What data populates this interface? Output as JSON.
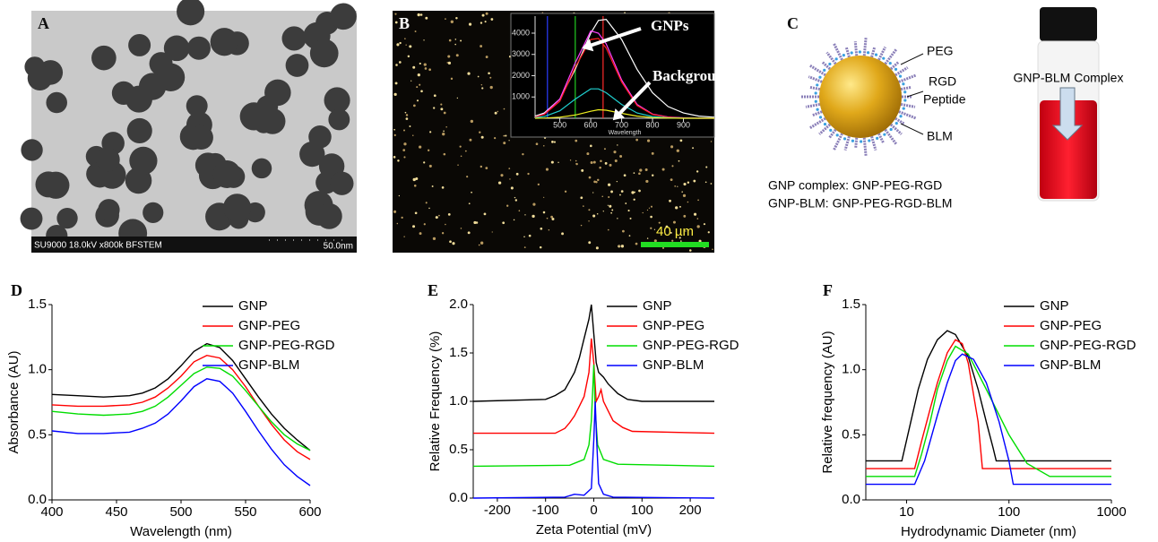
{
  "panels": {
    "A": {
      "label": "A",
      "caption": "SU9000 18.0kV x800k BFSTEM",
      "scale": "50.0nm"
    },
    "B": {
      "label": "B",
      "scale": "40 µm"
    },
    "C": {
      "label": "C",
      "parts": [
        "PEG",
        "RGD",
        "Peptide",
        "BLM"
      ],
      "captions": [
        "GNP complex: GNP-PEG-RGD",
        "GNP-BLM: GNP-PEG-RGD-BLM"
      ],
      "vial": "GNP-BLM Complex"
    },
    "D": {
      "label": "D"
    },
    "E": {
      "label": "E"
    },
    "F": {
      "label": "F"
    }
  },
  "chart_data": [
    {
      "type": "line",
      "x_label": "Wavelength",
      "xlim": [
        420,
        1000
      ],
      "ylim": [
        0,
        4800
      ],
      "xticks": [
        500,
        600,
        700,
        800,
        900
      ],
      "yticks": [
        1000,
        2000,
        3000,
        4000
      ],
      "annotations": [
        "GNPs",
        "Background"
      ],
      "markers": [
        {
          "value": 460,
          "color": "#2a3cff"
        },
        {
          "value": 550,
          "color": "#22cc22"
        },
        {
          "value": 640,
          "color": "#ff2a2a"
        }
      ],
      "x": [
        420,
        450,
        500,
        550,
        600,
        625,
        650,
        700,
        750,
        800,
        850,
        900,
        950,
        1000
      ],
      "series": [
        {
          "color": "#ffffff",
          "values": [
            100,
            250,
            900,
            2300,
            4000,
            4600,
            4650,
            3700,
            2300,
            1200,
            550,
            250,
            100,
            50
          ]
        },
        {
          "color": "#ff40ff",
          "values": [
            50,
            200,
            900,
            2600,
            4100,
            4000,
            3500,
            1800,
            650,
            200,
            60,
            20,
            0,
            0
          ]
        },
        {
          "color": "#ff2020",
          "values": [
            50,
            180,
            800,
            2400,
            3700,
            3750,
            3300,
            1700,
            600,
            180,
            50,
            10,
            0,
            0
          ]
        },
        {
          "color": "#20d0d0",
          "values": [
            20,
            80,
            350,
            900,
            1380,
            1380,
            1200,
            650,
            250,
            80,
            20,
            0,
            0,
            0
          ]
        },
        {
          "color": "#f0f020",
          "values": [
            0,
            10,
            50,
            150,
            330,
            400,
            380,
            230,
            100,
            30,
            10,
            0,
            0,
            0
          ]
        }
      ]
    },
    {
      "type": "line",
      "x_label": "Wavelength (nm)",
      "y_label": "Absorbance (AU)",
      "legend": "upper right",
      "xlim": [
        400,
        600
      ],
      "ylim": [
        0,
        1.5
      ],
      "xticks": [
        400,
        450,
        500,
        550,
        600
      ],
      "yticks": [
        {
          "value": 0,
          "label": "0.0"
        },
        0.5,
        {
          "value": 1,
          "label": "1.0"
        },
        1.5
      ],
      "x": [
        400,
        420,
        440,
        460,
        470,
        480,
        490,
        500,
        510,
        520,
        530,
        540,
        550,
        560,
        570,
        580,
        590,
        600
      ],
      "series": [
        {
          "name": "GNP",
          "color": "#000000",
          "values": [
            0.81,
            0.8,
            0.79,
            0.8,
            0.82,
            0.86,
            0.93,
            1.03,
            1.14,
            1.2,
            1.17,
            1.07,
            0.93,
            0.79,
            0.66,
            0.55,
            0.46,
            0.38
          ]
        },
        {
          "name": "GNP-PEG",
          "color": "#ff0000",
          "values": [
            0.73,
            0.72,
            0.72,
            0.73,
            0.75,
            0.79,
            0.86,
            0.95,
            1.06,
            1.11,
            1.09,
            1.0,
            0.87,
            0.72,
            0.58,
            0.46,
            0.37,
            0.31
          ]
        },
        {
          "name": "GNP-PEG-RGD",
          "color": "#00dd00",
          "values": [
            0.68,
            0.66,
            0.65,
            0.66,
            0.68,
            0.72,
            0.79,
            0.88,
            0.97,
            1.02,
            1.01,
            0.95,
            0.84,
            0.72,
            0.6,
            0.5,
            0.43,
            0.38
          ]
        },
        {
          "name": "GNP-BLM",
          "color": "#0000ff",
          "values": [
            0.53,
            0.51,
            0.51,
            0.52,
            0.55,
            0.59,
            0.66,
            0.76,
            0.87,
            0.93,
            0.91,
            0.82,
            0.68,
            0.53,
            0.39,
            0.27,
            0.18,
            0.11
          ]
        }
      ]
    },
    {
      "type": "line",
      "x_label": "Zeta Potential (mV)",
      "y_label": "Relative Frequency (%)",
      "legend": "upper right",
      "xlim": [
        -250,
        250
      ],
      "ylim": [
        0,
        2
      ],
      "xticks": [
        -200,
        -100,
        0,
        100,
        200
      ],
      "yticks": [
        {
          "value": 0,
          "label": "0.0"
        },
        0.5,
        {
          "value": 1,
          "label": "1.0"
        },
        1.5,
        {
          "value": 2,
          "label": "2.0"
        }
      ],
      "series": [
        {
          "name": "GNP",
          "color": "#000000",
          "x": [
            -250,
            -100,
            -80,
            -60,
            -40,
            -30,
            -20,
            -10,
            -5,
            0,
            5,
            10,
            20,
            30,
            50,
            70,
            100,
            250
          ],
          "values": [
            1.0,
            1.02,
            1.06,
            1.12,
            1.3,
            1.45,
            1.65,
            1.85,
            2.0,
            1.7,
            1.4,
            1.3,
            1.25,
            1.18,
            1.08,
            1.02,
            1.0,
            1.0
          ]
        },
        {
          "name": "GNP-PEG",
          "color": "#ff0000",
          "x": [
            -250,
            -80,
            -60,
            -50,
            -40,
            -30,
            -20,
            -10,
            -5,
            0,
            5,
            10,
            15,
            20,
            30,
            40,
            60,
            80,
            250
          ],
          "values": [
            0.67,
            0.67,
            0.72,
            0.78,
            0.85,
            0.95,
            1.05,
            1.3,
            1.65,
            1.4,
            1.0,
            1.05,
            1.12,
            1.0,
            0.9,
            0.8,
            0.73,
            0.69,
            0.67
          ]
        },
        {
          "name": "GNP-PEG-RGD",
          "color": "#00dd00",
          "x": [
            -250,
            -50,
            -20,
            -10,
            -5,
            0,
            3,
            8,
            20,
            50,
            250
          ],
          "values": [
            0.33,
            0.34,
            0.4,
            0.55,
            0.8,
            1.38,
            0.9,
            0.55,
            0.4,
            0.35,
            0.33
          ]
        },
        {
          "name": "GNP-BLM",
          "color": "#0000ff",
          "x": [
            -250,
            -60,
            -40,
            -20,
            -5,
            0,
            3,
            6,
            10,
            20,
            40,
            250
          ],
          "values": [
            0,
            0.01,
            0.04,
            0.03,
            0.1,
            0.6,
            1.0,
            0.6,
            0.15,
            0.04,
            0.01,
            0
          ]
        }
      ]
    },
    {
      "type": "line",
      "x_label": "Hydrodynamic Diameter (nm)",
      "y_label": "Relative frequency (AU)",
      "legend": "upper right",
      "xscale": "log",
      "xlim": [
        4,
        1000
      ],
      "ylim": [
        0,
        1.5
      ],
      "xticks": [
        10,
        100,
        1000
      ],
      "yticks": [
        {
          "value": 0,
          "label": "0.0"
        },
        0.5,
        {
          "value": 1,
          "label": "1.0"
        },
        1.5
      ],
      "series": [
        {
          "name": "GNP",
          "color": "#000000",
          "x": [
            4,
            9,
            11,
            13,
            16,
            20,
            25,
            30,
            40,
            50,
            60,
            70,
            75,
            1000
          ],
          "values": [
            0.3,
            0.3,
            0.6,
            0.85,
            1.08,
            1.23,
            1.3,
            1.27,
            1.1,
            0.85,
            0.6,
            0.4,
            0.3,
            0.3
          ]
        },
        {
          "name": "GNP-PEG",
          "color": "#ff0000",
          "x": [
            4,
            12,
            14,
            17,
            20,
            25,
            30,
            35,
            40,
            50,
            55,
            1000
          ],
          "values": [
            0.24,
            0.24,
            0.45,
            0.7,
            0.9,
            1.13,
            1.23,
            1.2,
            1.05,
            0.6,
            0.24,
            0.24
          ]
        },
        {
          "name": "GNP-PEG-RGD",
          "color": "#00dd00",
          "x": [
            4,
            12,
            14,
            17,
            20,
            25,
            30,
            40,
            60,
            100,
            150,
            250,
            1000
          ],
          "values": [
            0.18,
            0.18,
            0.35,
            0.6,
            0.85,
            1.07,
            1.18,
            1.12,
            0.85,
            0.5,
            0.28,
            0.18,
            0.18
          ]
        },
        {
          "name": "GNP-BLM",
          "color": "#0000ff",
          "x": [
            4,
            12,
            15,
            20,
            25,
            30,
            35,
            45,
            60,
            80,
            100,
            110,
            1000
          ],
          "values": [
            0.12,
            0.12,
            0.3,
            0.65,
            0.9,
            1.07,
            1.12,
            1.08,
            0.9,
            0.6,
            0.3,
            0.12,
            0.12
          ]
        }
      ]
    }
  ]
}
